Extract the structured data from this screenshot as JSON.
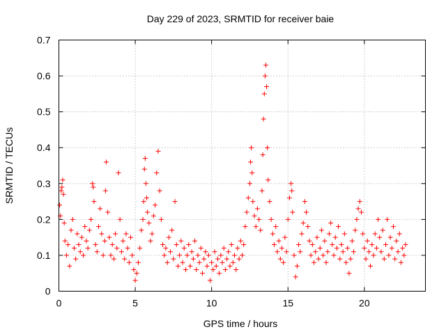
{
  "chart_data": {
    "type": "scatter",
    "title": "Day 229 of 2023, SRMTID for receiver baie",
    "xlabel": "GPS time / hours",
    "ylabel": "SRMTID / TECUs",
    "xlim": [
      0,
      24
    ],
    "ylim": [
      0,
      0.7
    ],
    "xticks": [
      0,
      5,
      10,
      15,
      20
    ],
    "xtick_labels": [
      "0",
      "5",
      "10",
      "15",
      "20"
    ],
    "yticks": [
      0,
      0.1,
      0.2,
      0.3,
      0.4,
      0.5,
      0.6,
      0.7
    ],
    "ytick_labels": [
      "0",
      "0.1",
      "0.2",
      "0.3",
      "0.4",
      "0.5",
      "0.6",
      "0.7"
    ],
    "grid": true,
    "marker": "plus",
    "color": "#ff0000",
    "series": [
      {
        "name": "SRMTID",
        "points": [
          [
            0.05,
            0.24
          ],
          [
            0.1,
            0.21
          ],
          [
            0.15,
            0.28
          ],
          [
            0.2,
            0.29
          ],
          [
            0.25,
            0.31
          ],
          [
            0.3,
            0.27
          ],
          [
            0.35,
            0.19
          ],
          [
            0.4,
            0.14
          ],
          [
            0.5,
            0.1
          ],
          [
            0.6,
            0.13
          ],
          [
            0.7,
            0.07
          ],
          [
            0.8,
            0.17
          ],
          [
            0.9,
            0.2
          ],
          [
            1.0,
            0.12
          ],
          [
            1.1,
            0.09
          ],
          [
            1.2,
            0.16
          ],
          [
            1.3,
            0.13
          ],
          [
            1.4,
            0.11
          ],
          [
            1.5,
            0.15
          ],
          [
            1.6,
            0.1
          ],
          [
            1.7,
            0.18
          ],
          [
            1.8,
            0.14
          ],
          [
            1.9,
            0.12
          ],
          [
            2.0,
            0.17
          ],
          [
            2.1,
            0.2
          ],
          [
            2.2,
            0.3
          ],
          [
            2.25,
            0.29
          ],
          [
            2.3,
            0.25
          ],
          [
            2.4,
            0.13
          ],
          [
            2.5,
            0.11
          ],
          [
            2.6,
            0.18
          ],
          [
            2.7,
            0.23
          ],
          [
            2.8,
            0.16
          ],
          [
            2.9,
            0.1
          ],
          [
            3.0,
            0.14
          ],
          [
            3.05,
            0.28
          ],
          [
            3.1,
            0.36
          ],
          [
            3.2,
            0.22
          ],
          [
            3.3,
            0.15
          ],
          [
            3.4,
            0.1
          ],
          [
            3.5,
            0.13
          ],
          [
            3.6,
            0.09
          ],
          [
            3.7,
            0.16
          ],
          [
            3.8,
            0.12
          ],
          [
            3.9,
            0.33
          ],
          [
            4.0,
            0.2
          ],
          [
            4.1,
            0.11
          ],
          [
            4.2,
            0.14
          ],
          [
            4.3,
            0.09
          ],
          [
            4.4,
            0.16
          ],
          [
            4.5,
            0.12
          ],
          [
            4.6,
            0.08
          ],
          [
            4.7,
            0.15
          ],
          [
            4.8,
            0.1
          ],
          [
            4.9,
            0.06
          ],
          [
            5.0,
            0.03
          ],
          [
            5.1,
            0.05
          ],
          [
            5.2,
            0.08
          ],
          [
            5.3,
            0.12
          ],
          [
            5.4,
            0.17
          ],
          [
            5.5,
            0.2
          ],
          [
            5.55,
            0.25
          ],
          [
            5.6,
            0.34
          ],
          [
            5.65,
            0.37
          ],
          [
            5.7,
            0.3
          ],
          [
            5.75,
            0.26
          ],
          [
            5.8,
            0.22
          ],
          [
            5.9,
            0.19
          ],
          [
            6.0,
            0.14
          ],
          [
            6.1,
            0.16
          ],
          [
            6.2,
            0.21
          ],
          [
            6.3,
            0.24
          ],
          [
            6.4,
            0.33
          ],
          [
            6.5,
            0.39
          ],
          [
            6.6,
            0.28
          ],
          [
            6.7,
            0.2
          ],
          [
            6.8,
            0.13
          ],
          [
            6.9,
            0.1
          ],
          [
            7.0,
            0.12
          ],
          [
            7.1,
            0.08
          ],
          [
            7.2,
            0.15
          ],
          [
            7.3,
            0.11
          ],
          [
            7.4,
            0.17
          ],
          [
            7.5,
            0.09
          ],
          [
            7.6,
            0.25
          ],
          [
            7.7,
            0.13
          ],
          [
            7.8,
            0.07
          ],
          [
            7.9,
            0.1
          ],
          [
            8.0,
            0.14
          ],
          [
            8.1,
            0.08
          ],
          [
            8.2,
            0.12
          ],
          [
            8.3,
            0.06
          ],
          [
            8.4,
            0.1
          ],
          [
            8.5,
            0.13
          ],
          [
            8.6,
            0.07
          ],
          [
            8.7,
            0.11
          ],
          [
            8.8,
            0.09
          ],
          [
            8.9,
            0.14
          ],
          [
            9.0,
            0.06
          ],
          [
            9.1,
            0.1
          ],
          [
            9.2,
            0.08
          ],
          [
            9.3,
            0.12
          ],
          [
            9.4,
            0.05
          ],
          [
            9.5,
            0.09
          ],
          [
            9.6,
            0.11
          ],
          [
            9.7,
            0.07
          ],
          [
            9.8,
            0.1
          ],
          [
            9.9,
            0.03
          ],
          [
            10.0,
            0.08
          ],
          [
            10.1,
            0.06
          ],
          [
            10.2,
            0.11
          ],
          [
            10.3,
            0.07
          ],
          [
            10.4,
            0.09
          ],
          [
            10.5,
            0.05
          ],
          [
            10.6,
            0.1
          ],
          [
            10.7,
            0.08
          ],
          [
            10.8,
            0.12
          ],
          [
            10.9,
            0.06
          ],
          [
            11.0,
            0.09
          ],
          [
            11.1,
            0.11
          ],
          [
            11.2,
            0.07
          ],
          [
            11.3,
            0.13
          ],
          [
            11.4,
            0.08
          ],
          [
            11.5,
            0.1
          ],
          [
            11.6,
            0.06
          ],
          [
            11.7,
            0.12
          ],
          [
            11.8,
            0.09
          ],
          [
            11.9,
            0.14
          ],
          [
            12.0,
            0.1
          ],
          [
            12.1,
            0.13
          ],
          [
            12.2,
            0.18
          ],
          [
            12.3,
            0.22
          ],
          [
            12.4,
            0.26
          ],
          [
            12.5,
            0.3
          ],
          [
            12.55,
            0.36
          ],
          [
            12.6,
            0.4
          ],
          [
            12.65,
            0.33
          ],
          [
            12.7,
            0.25
          ],
          [
            12.8,
            0.21
          ],
          [
            12.9,
            0.18
          ],
          [
            13.0,
            0.23
          ],
          [
            13.1,
            0.2
          ],
          [
            13.2,
            0.17
          ],
          [
            13.3,
            0.28
          ],
          [
            13.35,
            0.38
          ],
          [
            13.4,
            0.48
          ],
          [
            13.45,
            0.55
          ],
          [
            13.5,
            0.6
          ],
          [
            13.55,
            0.63
          ],
          [
            13.6,
            0.57
          ],
          [
            13.65,
            0.4
          ],
          [
            13.7,
            0.31
          ],
          [
            13.8,
            0.25
          ],
          [
            13.9,
            0.2
          ],
          [
            14.0,
            0.16
          ],
          [
            14.1,
            0.13
          ],
          [
            14.2,
            0.18
          ],
          [
            14.3,
            0.11
          ],
          [
            14.4,
            0.14
          ],
          [
            14.5,
            0.09
          ],
          [
            14.6,
            0.12
          ],
          [
            14.7,
            0.08
          ],
          [
            14.8,
            0.15
          ],
          [
            14.9,
            0.11
          ],
          [
            15.0,
            0.2
          ],
          [
            15.1,
            0.26
          ],
          [
            15.2,
            0.3
          ],
          [
            15.25,
            0.28
          ],
          [
            15.3,
            0.22
          ],
          [
            15.4,
            0.1
          ],
          [
            15.5,
            0.04
          ],
          [
            15.6,
            0.07
          ],
          [
            15.7,
            0.13
          ],
          [
            15.8,
            0.11
          ],
          [
            15.9,
            0.16
          ],
          [
            16.0,
            0.19
          ],
          [
            16.1,
            0.25
          ],
          [
            16.2,
            0.22
          ],
          [
            16.3,
            0.18
          ],
          [
            16.4,
            0.14
          ],
          [
            16.5,
            0.1
          ],
          [
            16.6,
            0.13
          ],
          [
            16.7,
            0.08
          ],
          [
            16.8,
            0.11
          ],
          [
            16.9,
            0.15
          ],
          [
            17.0,
            0.09
          ],
          [
            17.1,
            0.12
          ],
          [
            17.2,
            0.17
          ],
          [
            17.3,
            0.1
          ],
          [
            17.4,
            0.14
          ],
          [
            17.5,
            0.08
          ],
          [
            17.6,
            0.11
          ],
          [
            17.7,
            0.16
          ],
          [
            17.8,
            0.19
          ],
          [
            17.9,
            0.13
          ],
          [
            18.0,
            0.1
          ],
          [
            18.1,
            0.15
          ],
          [
            18.2,
            0.12
          ],
          [
            18.3,
            0.18
          ],
          [
            18.4,
            0.09
          ],
          [
            18.5,
            0.13
          ],
          [
            18.6,
            0.11
          ],
          [
            18.7,
            0.16
          ],
          [
            18.8,
            0.08
          ],
          [
            18.9,
            0.12
          ],
          [
            19.0,
            0.05
          ],
          [
            19.1,
            0.09
          ],
          [
            19.2,
            0.14
          ],
          [
            19.3,
            0.11
          ],
          [
            19.4,
            0.17
          ],
          [
            19.5,
            0.2
          ],
          [
            19.6,
            0.23
          ],
          [
            19.7,
            0.25
          ],
          [
            19.8,
            0.22
          ],
          [
            19.9,
            0.16
          ],
          [
            20.0,
            0.12
          ],
          [
            20.1,
            0.09
          ],
          [
            20.2,
            0.14
          ],
          [
            20.3,
            0.11
          ],
          [
            20.4,
            0.07
          ],
          [
            20.5,
            0.13
          ],
          [
            20.6,
            0.1
          ],
          [
            20.7,
            0.16
          ],
          [
            20.8,
            0.12
          ],
          [
            20.9,
            0.2
          ],
          [
            21.0,
            0.15
          ],
          [
            21.1,
            0.11
          ],
          [
            21.2,
            0.17
          ],
          [
            21.3,
            0.09
          ],
          [
            21.4,
            0.13
          ],
          [
            21.5,
            0.2
          ],
          [
            21.6,
            0.1
          ],
          [
            21.7,
            0.15
          ],
          [
            21.8,
            0.12
          ],
          [
            21.9,
            0.18
          ],
          [
            22.0,
            0.09
          ],
          [
            22.1,
            0.14
          ],
          [
            22.2,
            0.11
          ],
          [
            22.3,
            0.16
          ],
          [
            22.4,
            0.08
          ],
          [
            22.5,
            0.12
          ],
          [
            22.6,
            0.1
          ],
          [
            22.7,
            0.13
          ]
        ]
      }
    ]
  }
}
